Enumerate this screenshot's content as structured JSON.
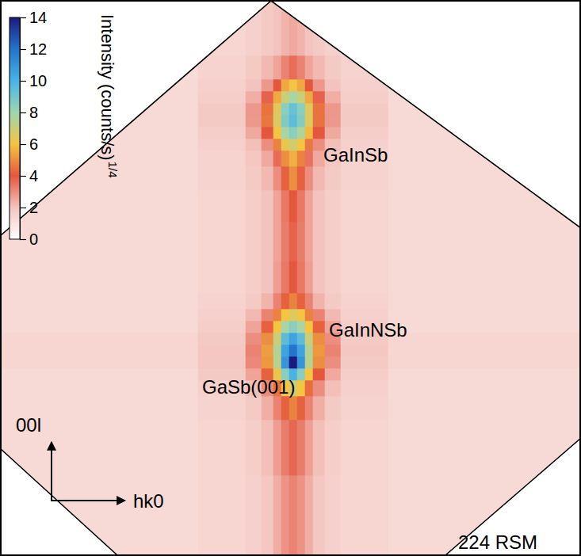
{
  "chart_data": {
    "type": "heatmap",
    "x_label": "hk0",
    "y_label": "00l",
    "xlim": [
      0,
      733
    ],
    "ylim": [
      0,
      702
    ],
    "x_edges": [
      0,
      250,
      310,
      330,
      345,
      355,
      365,
      375,
      385,
      395,
      410,
      430,
      490,
      733
    ],
    "y_edges": [
      0,
      102,
      172,
      202,
      222,
      237,
      252,
      267,
      282,
      297,
      312,
      332,
      372,
      422,
      462,
      492,
      512,
      527,
      542,
      557,
      572,
      587,
      602,
      632,
      702
    ],
    "cells": [
      [
        1.3,
        1.4,
        1.6,
        1.9,
        2.4,
        2.9,
        3.2,
        2.9,
        2.4,
        1.9,
        1.6,
        1.4,
        1.3
      ],
      [
        1.3,
        1.4,
        1.7,
        2.1,
        2.7,
        3.3,
        3.7,
        3.3,
        2.7,
        2.1,
        1.7,
        1.4,
        1.3
      ],
      [
        1.3,
        1.5,
        1.8,
        2.4,
        3.2,
        4.2,
        4.8,
        4.2,
        3.2,
        2.4,
        1.8,
        1.5,
        1.3
      ],
      [
        1.3,
        1.6,
        2.1,
        3.0,
        4.5,
        6.0,
        6.8,
        6.0,
        4.4,
        3.0,
        2.1,
        1.6,
        1.3
      ],
      [
        1.3,
        1.8,
        2.6,
        4.2,
        6.2,
        8.5,
        10,
        8.5,
        6.0,
        4.0,
        2.5,
        1.7,
        1.3
      ],
      [
        1.4,
        1.9,
        3.1,
        5.2,
        7.4,
        11,
        14,
        11,
        7.4,
        5.0,
        3.0,
        1.8,
        1.4
      ],
      [
        1.4,
        1.9,
        3.2,
        5.3,
        7.5,
        10.5,
        12,
        10.5,
        7.5,
        5.2,
        3.2,
        1.9,
        1.4
      ],
      [
        1.4,
        1.8,
        3.0,
        5.0,
        7.0,
        9.5,
        10.5,
        9.5,
        7.0,
        5.0,
        3.0,
        1.8,
        1.4
      ],
      [
        1.3,
        1.7,
        2.6,
        4.2,
        6.0,
        7.8,
        8.5,
        7.8,
        6.0,
        4.2,
        2.6,
        1.7,
        1.3
      ],
      [
        1.3,
        1.6,
        2.2,
        3.2,
        4.8,
        6.0,
        6.5,
        6.0,
        4.8,
        3.2,
        2.2,
        1.6,
        1.3
      ],
      [
        1.3,
        1.5,
        1.8,
        2.3,
        3.2,
        4.2,
        4.8,
        4.2,
        3.2,
        2.3,
        1.8,
        1.5,
        1.3
      ],
      [
        1.3,
        1.4,
        1.7,
        2.0,
        2.7,
        3.4,
        4.0,
        3.4,
        2.7,
        2.0,
        1.7,
        1.4,
        1.3
      ],
      [
        1.3,
        1.4,
        1.7,
        2.0,
        2.6,
        3.3,
        3.8,
        3.3,
        2.6,
        2.0,
        1.7,
        1.4,
        1.3
      ],
      [
        1.3,
        1.4,
        1.7,
        2.0,
        2.6,
        3.4,
        4.0,
        3.4,
        2.6,
        2.0,
        1.7,
        1.4,
        1.3
      ],
      [
        1.3,
        1.5,
        1.8,
        2.2,
        3.0,
        4.2,
        5.0,
        4.2,
        3.0,
        2.2,
        1.8,
        1.5,
        1.3
      ],
      [
        1.3,
        1.5,
        1.9,
        2.5,
        3.6,
        5.0,
        5.6,
        4.8,
        3.5,
        2.5,
        1.9,
        1.5,
        1.3
      ],
      [
        1.3,
        1.6,
        2.1,
        3.0,
        4.8,
        6.2,
        6.8,
        6.0,
        4.6,
        3.0,
        2.1,
        1.6,
        1.3
      ],
      [
        1.3,
        1.7,
        2.5,
        4.0,
        6.0,
        7.8,
        8.5,
        7.6,
        5.8,
        4.0,
        2.5,
        1.7,
        1.3
      ],
      [
        1.3,
        1.8,
        2.8,
        4.6,
        6.6,
        8.7,
        9.5,
        8.6,
        6.5,
        4.5,
        2.8,
        1.8,
        1.3
      ],
      [
        1.3,
        1.8,
        2.8,
        4.5,
        6.5,
        8.5,
        9.3,
        8.5,
        6.5,
        4.5,
        2.8,
        1.8,
        1.3
      ],
      [
        1.3,
        1.7,
        2.4,
        3.8,
        5.5,
        7.0,
        7.8,
        7.0,
        5.5,
        3.8,
        2.4,
        1.7,
        1.3
      ],
      [
        1.3,
        1.6,
        2.0,
        2.8,
        4.0,
        5.5,
        6.0,
        5.5,
        4.0,
        2.8,
        2.0,
        1.6,
        1.3
      ],
      [
        1.2,
        1.5,
        1.8,
        2.2,
        2.6,
        3.2,
        3.6,
        3.2,
        2.6,
        2.2,
        1.8,
        1.5,
        1.2
      ],
      [
        1.2,
        1.4,
        1.6,
        1.8,
        2.0,
        2.3,
        2.5,
        2.3,
        2.0,
        1.8,
        1.6,
        1.4,
        1.2
      ]
    ],
    "colorbar": {
      "label": "Intensity (counts/s)",
      "label_superscript": "1/4",
      "range": [
        0,
        14
      ],
      "ticks": [
        0,
        2,
        4,
        6,
        8,
        10,
        12,
        14
      ],
      "colors": [
        "#ffffff",
        "#f3c4bf",
        "#e4573f",
        "#f4c443",
        "#9ed7b0",
        "#49b3e6",
        "#2474cc",
        "#1b1a7e"
      ]
    },
    "annotations": [
      "GaInSb",
      "GaInNSb",
      "GaSb(001)",
      "224 RSM"
    ]
  }
}
